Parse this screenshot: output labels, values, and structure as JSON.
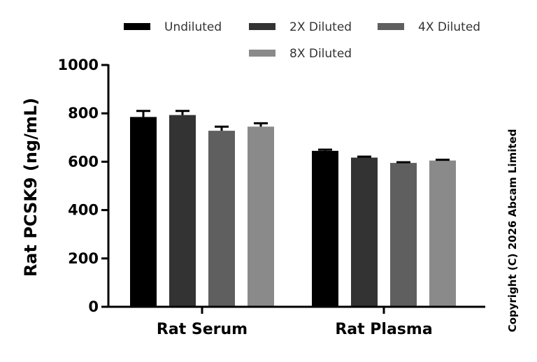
{
  "chart_data": {
    "type": "bar",
    "categories": [
      "Rat Serum",
      "Rat Plasma"
    ],
    "series": [
      {
        "name": "Undiluted",
        "color": "#000000",
        "values": [
          785,
          645
        ],
        "errors": [
          25,
          5
        ]
      },
      {
        "name": "2X Diluted",
        "color": "#333333",
        "values": [
          793,
          617
        ],
        "errors": [
          17,
          4
        ]
      },
      {
        "name": "4X Diluted",
        "color": "#5f5f5f",
        "values": [
          728,
          595
        ],
        "errors": [
          17,
          3
        ]
      },
      {
        "name": "8X Diluted",
        "color": "#8a8a8a",
        "values": [
          745,
          605
        ],
        "errors": [
          14,
          3
        ]
      }
    ],
    "ylabel": "Rat PCSK9 (ng/mL)",
    "xlabel": "",
    "ylim": [
      0,
      1000
    ],
    "yticks": [
      0,
      200,
      400,
      600,
      800,
      1000
    ],
    "grid": false,
    "legend_position": "top"
  },
  "copyright": "Copyright (C) 2026 Abcam Limited"
}
